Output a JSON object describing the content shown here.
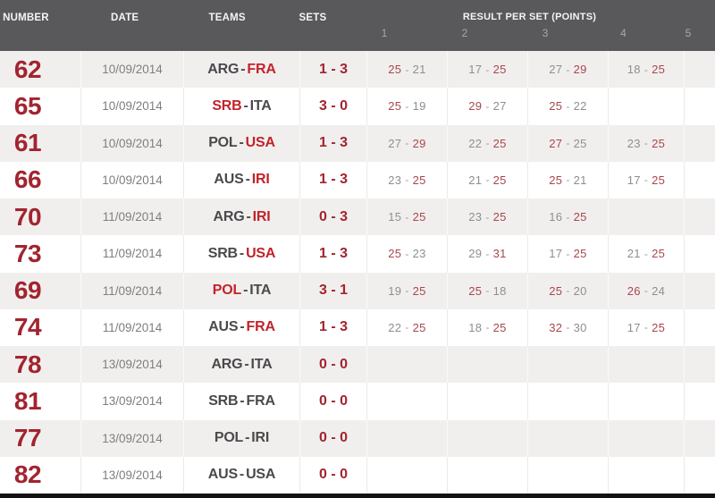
{
  "header": {
    "columns": [
      "NUMBER",
      "DATE",
      "TEAMS",
      "SETS"
    ],
    "results_group": {
      "label": "RESULT PER SET (POINTS)",
      "set_columns": [
        "1",
        "2",
        "3",
        "4",
        "5"
      ]
    }
  },
  "ui": {
    "teams_separator": "-",
    "score_separator": "-"
  },
  "rows": [
    {
      "number": "62",
      "date": "10/09/2014",
      "team1": "ARG",
      "team2": "FRA",
      "winner": 2,
      "sets_score": "1 - 3",
      "set_results": [
        [
          25,
          21
        ],
        [
          17,
          25
        ],
        [
          27,
          29
        ],
        [
          18,
          25
        ]
      ]
    },
    {
      "number": "65",
      "date": "10/09/2014",
      "team1": "SRB",
      "team2": "ITA",
      "winner": 1,
      "sets_score": "3 - 0",
      "set_results": [
        [
          25,
          19
        ],
        [
          29,
          27
        ],
        [
          25,
          22
        ]
      ]
    },
    {
      "number": "61",
      "date": "10/09/2014",
      "team1": "POL",
      "team2": "USA",
      "winner": 2,
      "sets_score": "1 - 3",
      "set_results": [
        [
          27,
          29
        ],
        [
          22,
          25
        ],
        [
          27,
          25
        ],
        [
          23,
          25
        ]
      ]
    },
    {
      "number": "66",
      "date": "10/09/2014",
      "team1": "AUS",
      "team2": "IRI",
      "winner": 2,
      "sets_score": "1 - 3",
      "set_results": [
        [
          23,
          25
        ],
        [
          21,
          25
        ],
        [
          25,
          21
        ],
        [
          17,
          25
        ]
      ]
    },
    {
      "number": "70",
      "date": "11/09/2014",
      "team1": "ARG",
      "team2": "IRI",
      "winner": 2,
      "sets_score": "0 - 3",
      "set_results": [
        [
          15,
          25
        ],
        [
          23,
          25
        ],
        [
          16,
          25
        ]
      ]
    },
    {
      "number": "73",
      "date": "11/09/2014",
      "team1": "SRB",
      "team2": "USA",
      "winner": 2,
      "sets_score": "1 - 3",
      "set_results": [
        [
          25,
          23
        ],
        [
          29,
          31
        ],
        [
          17,
          25
        ],
        [
          21,
          25
        ]
      ]
    },
    {
      "number": "69",
      "date": "11/09/2014",
      "team1": "POL",
      "team2": "ITA",
      "winner": 1,
      "sets_score": "3 - 1",
      "set_results": [
        [
          19,
          25
        ],
        [
          25,
          18
        ],
        [
          25,
          20
        ],
        [
          26,
          24
        ]
      ]
    },
    {
      "number": "74",
      "date": "11/09/2014",
      "team1": "AUS",
      "team2": "FRA",
      "winner": 2,
      "sets_score": "1 - 3",
      "set_results": [
        [
          22,
          25
        ],
        [
          18,
          25
        ],
        [
          32,
          30
        ],
        [
          17,
          25
        ]
      ]
    },
    {
      "number": "78",
      "date": "13/09/2014",
      "team1": "ARG",
      "team2": "ITA",
      "winner": 0,
      "sets_score": "0 - 0",
      "set_results": []
    },
    {
      "number": "81",
      "date": "13/09/2014",
      "team1": "SRB",
      "team2": "FRA",
      "winner": 0,
      "sets_score": "0 - 0",
      "set_results": []
    },
    {
      "number": "77",
      "date": "13/09/2014",
      "team1": "POL",
      "team2": "IRI",
      "winner": 0,
      "sets_score": "0 - 0",
      "set_results": []
    },
    {
      "number": "82",
      "date": "13/09/2014",
      "team1": "AUS",
      "team2": "USA",
      "winner": 0,
      "sets_score": "0 - 0",
      "set_results": []
    }
  ],
  "colors": {
    "header_bg": "#59595b",
    "header_text": "#f4f4f4",
    "header_sub": "#a8a8aa",
    "row_bg": "#ffffff",
    "row_alt_bg": "#f1efee",
    "number_red": "#a2242f",
    "team_red": "#c2232b",
    "team_dark": "#4a4a4c",
    "date_gray": "#7e7e80",
    "sets_red": "#a2242f",
    "set_win": "#a8474d",
    "set_lose": "#8e8e90",
    "dash_gray": "#9b9b9d",
    "sep_on_alt": "#fbfaf9",
    "sep_on_white": "#eceae8",
    "bottom_bar": "#121212"
  }
}
